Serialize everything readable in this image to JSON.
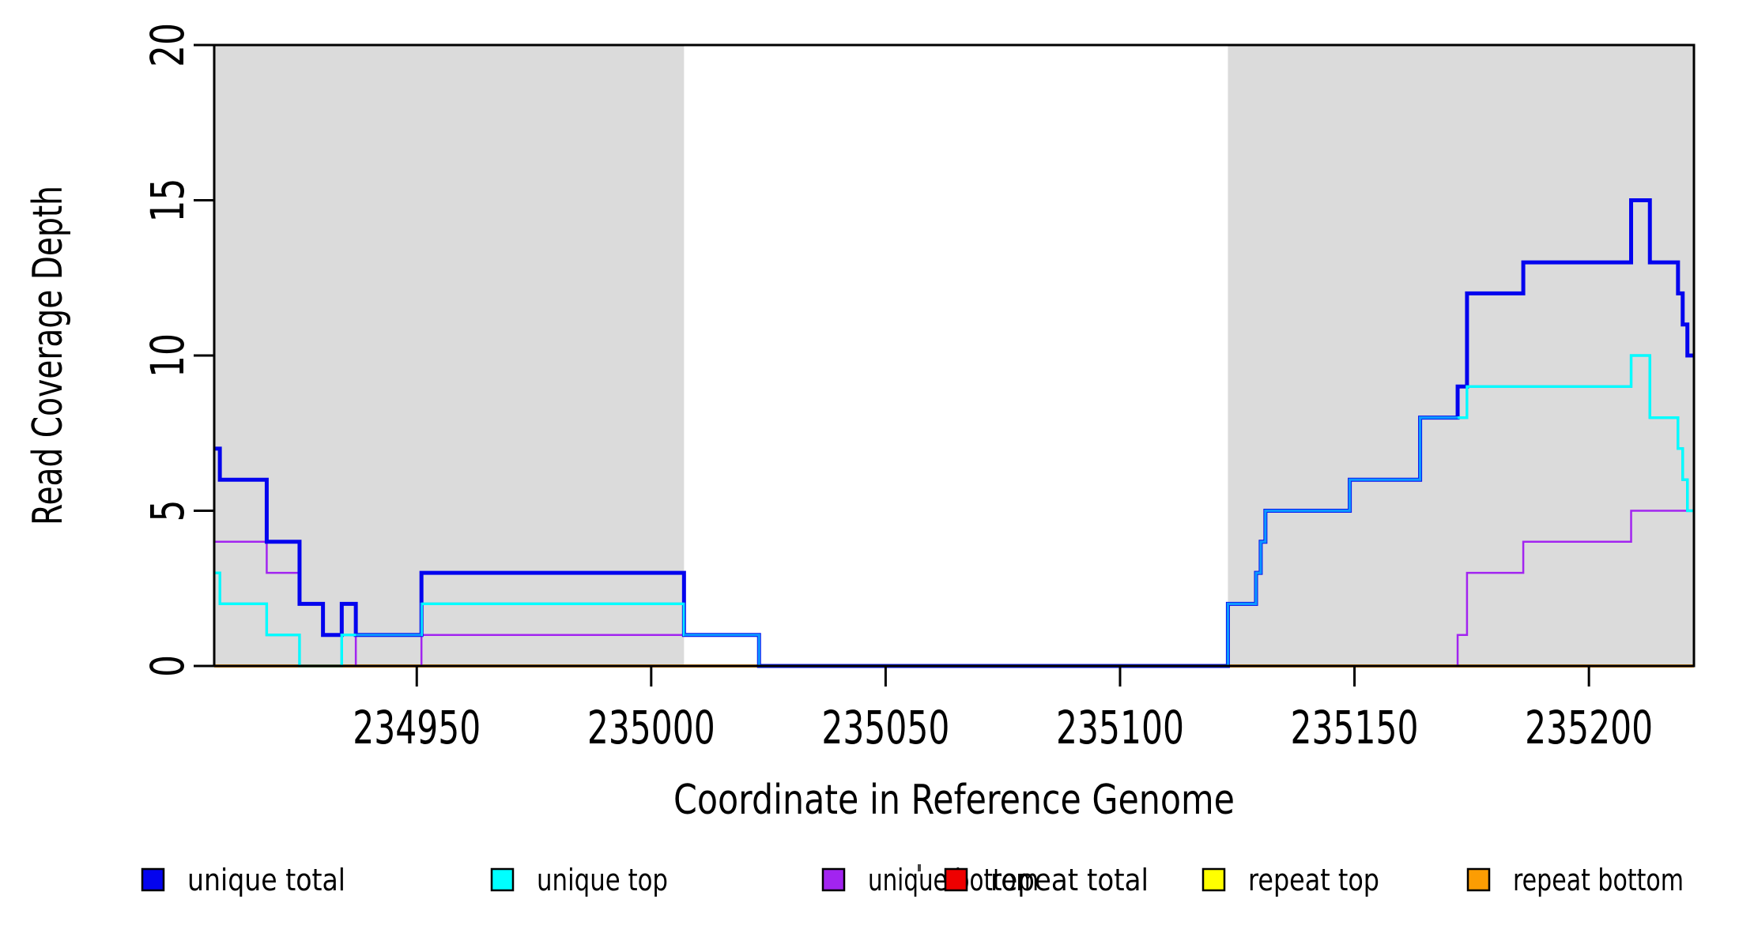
{
  "figure": {
    "y_axis": {
      "title": "Read Coverage Depth",
      "tick_labels": [
        "0",
        "5",
        "10",
        "15",
        "20"
      ],
      "tick_values": [
        0,
        5,
        10,
        15,
        20
      ]
    },
    "x_axis": {
      "title": "Coordinate in Reference Genome",
      "tick_labels": [
        "234950",
        "235000",
        "235050",
        "235100",
        "235150",
        "235200"
      ],
      "tick_values": [
        234950,
        235000,
        235050,
        235100,
        235150,
        235200
      ]
    }
  },
  "legend": {
    "items": [
      {
        "label": "unique total",
        "color": "#0404EE"
      },
      {
        "label": "unique top",
        "color": "#00FFFF"
      },
      {
        "label": "unique bottom",
        "color": "#A224F0"
      },
      {
        "label": "repeat total",
        "color": "#EE0000"
      },
      {
        "label": "repeat top",
        "color": "#FFFF00"
      },
      {
        "label": "repeat bottom",
        "color": "#FC9D03"
      }
    ]
  },
  "chart_data": {
    "type": "line",
    "subtype": "step",
    "title": "",
    "xlabel": "Coordinate in Reference Genome",
    "ylabel": "Read Coverage Depth",
    "xlim": [
      234906.8,
      235222.4
    ],
    "ylim": [
      0,
      20
    ],
    "x_ticks": [
      234950,
      235000,
      235050,
      235100,
      235150,
      235200
    ],
    "y_ticks": [
      0,
      5,
      10,
      15,
      20
    ],
    "grid": false,
    "legend_position": "bottom",
    "plot_bg": "#FFFFFF",
    "shaded_region_color": "#DBDBDB",
    "shaded_regions": [
      {
        "from": 234906.8,
        "to": 235007
      },
      {
        "from": 235123,
        "to": 235222.4
      }
    ],
    "series": [
      {
        "name": "repeat total",
        "color": "#EE0000",
        "width": 2,
        "steps": [
          [
            234906.8,
            0
          ]
        ]
      },
      {
        "name": "repeat top",
        "color": "#FFFF00",
        "width": 2,
        "steps": [
          [
            234906.8,
            0
          ]
        ]
      },
      {
        "name": "repeat bottom",
        "color": "#FC9D03",
        "width": 4,
        "steps": [
          [
            234906.8,
            0
          ]
        ]
      },
      {
        "name": "unique bottom",
        "color": "#A224F0",
        "width": 2.5,
        "steps": [
          [
            234906.8,
            4
          ],
          [
            234918,
            3
          ],
          [
            234925,
            2
          ],
          [
            234930,
            1
          ],
          [
            234937,
            0
          ],
          [
            234951,
            1
          ],
          [
            235023,
            0
          ],
          [
            235172,
            1
          ],
          [
            235174,
            3
          ],
          [
            235186,
            4
          ],
          [
            235209,
            5
          ]
        ]
      },
      {
        "name": "unique total",
        "color": "#0404EE",
        "width": 5,
        "steps": [
          [
            234906.8,
            7
          ],
          [
            234908,
            6
          ],
          [
            234918,
            4
          ],
          [
            234925,
            2
          ],
          [
            234930,
            1
          ],
          [
            234934,
            2
          ],
          [
            234937,
            1
          ],
          [
            234951,
            3
          ],
          [
            235007,
            1
          ],
          [
            235023,
            0
          ],
          [
            235123,
            2
          ],
          [
            235129,
            3
          ],
          [
            235130,
            4
          ],
          [
            235131,
            5
          ],
          [
            235149,
            6
          ],
          [
            235164,
            8
          ],
          [
            235172,
            9
          ],
          [
            235174,
            12
          ],
          [
            235186,
            13
          ],
          [
            235209,
            15
          ],
          [
            235213,
            13
          ],
          [
            235219,
            12
          ],
          [
            235220,
            11
          ],
          [
            235221,
            10
          ]
        ]
      },
      {
        "name": "unique top",
        "color": "#00FFFF",
        "width": 3.2,
        "coincident_color": "#0D97FF",
        "distinct_ranges": [
          [
            234906.8,
            234937
          ],
          [
            234951,
            235007
          ],
          [
            235172,
            235222.4
          ]
        ],
        "steps": [
          [
            234906.8,
            3
          ],
          [
            234908,
            2
          ],
          [
            234918,
            1
          ],
          [
            234925,
            0
          ],
          [
            234934,
            1
          ],
          [
            234951,
            2
          ],
          [
            235007,
            1
          ],
          [
            235023,
            0
          ],
          [
            235123,
            2
          ],
          [
            235129,
            3
          ],
          [
            235130,
            4
          ],
          [
            235131,
            5
          ],
          [
            235149,
            6
          ],
          [
            235164,
            8
          ],
          [
            235174,
            9
          ],
          [
            235209,
            10
          ],
          [
            235213,
            8
          ],
          [
            235219,
            7
          ],
          [
            235220,
            6
          ],
          [
            235221,
            5
          ]
        ]
      }
    ]
  }
}
